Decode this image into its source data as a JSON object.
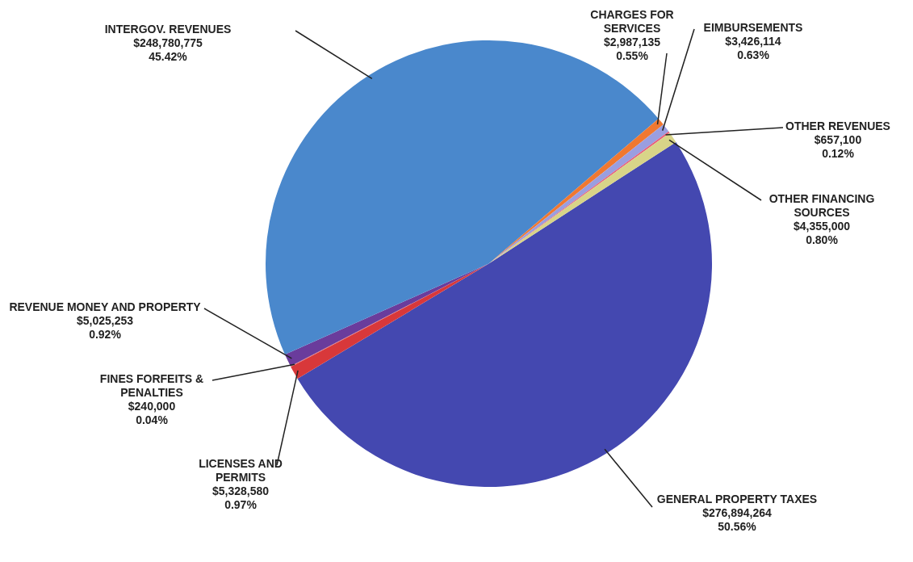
{
  "chart_data": {
    "type": "pie",
    "categories": [
      "GENERAL PROPERTY TAXES",
      "LICENSES AND PERMITS",
      "FINES FORFEITS & PENALTIES",
      "REVENUE MONEY AND PROPERTY",
      "INTERGOV. REVENUES",
      "CHARGES FOR SERVICES",
      "EIMBURSEMENTS",
      "OTHER REVENUES",
      "OTHER FINANCING SOURCES"
    ],
    "values": [
      276894264,
      5328580,
      240000,
      5025253,
      248780775,
      2987135,
      3426114,
      657100,
      4355000
    ],
    "colors": [
      "#4448b0",
      "#d8383a",
      "#e8686a",
      "#6a3c9c",
      "#4a88cc",
      "#f07830",
      "#9a9ee0",
      "#e85a78",
      "#d8d488"
    ],
    "value_labels": [
      "$276,894,264\n50.56%",
      "$5,328,580\n0.97%",
      "$240,000\n0.04%",
      "$5,025,253\n0.92%",
      "$248,780,775\n45.42%",
      "$2,987,135\n0.55%",
      "$3,426,114\n0.63%",
      "$657,100\n0.12%",
      "$4,355,000\n0.80%"
    ],
    "legend": false
  }
}
